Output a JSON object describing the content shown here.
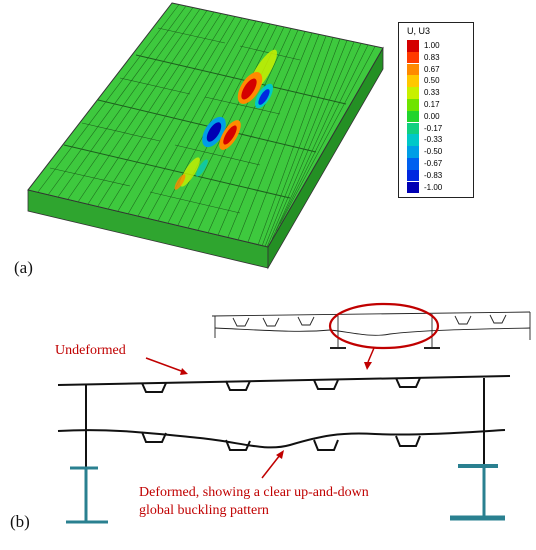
{
  "panel_a": {
    "label": "(a)",
    "legend": {
      "title": "U, U3",
      "entries": [
        {
          "value": "1.00",
          "color": "#d40000"
        },
        {
          "value": "0.83",
          "color": "#ff3a00"
        },
        {
          "value": "0.67",
          "color": "#ff8a00"
        },
        {
          "value": "0.50",
          "color": "#ffc800"
        },
        {
          "value": "0.33",
          "color": "#c8f000"
        },
        {
          "value": "0.17",
          "color": "#6ee400"
        },
        {
          "value": "0.00",
          "color": "#22d42c"
        },
        {
          "value": "-0.17",
          "color": "#10d080"
        },
        {
          "value": "-0.33",
          "color": "#00c8c8"
        },
        {
          "value": "-0.50",
          "color": "#009ee6"
        },
        {
          "value": "-0.67",
          "color": "#0060f0"
        },
        {
          "value": "-0.83",
          "color": "#0028e0"
        },
        {
          "value": "-1.00",
          "color": "#0000b4"
        }
      ]
    },
    "plate_color": "#3ec93e"
  },
  "panel_b": {
    "label": "(b)",
    "annotation_undeformed": "Undeformed",
    "annotation_deformed_line1": "Deformed, showing a clear up-and-down",
    "annotation_deformed_line2": "global buckling pattern",
    "annotation_color": "#c00000"
  }
}
